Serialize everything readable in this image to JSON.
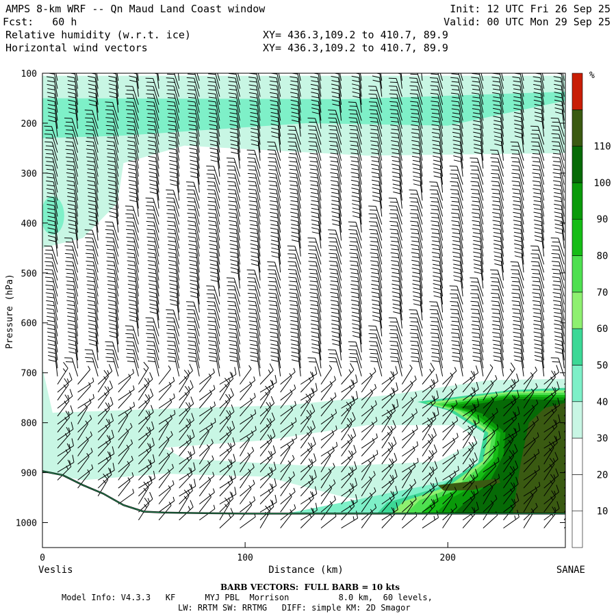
{
  "header": {
    "title": "AMPS 8-km WRF -- Qn Maud Land Coast window",
    "fcst": "Fcst:   60 h",
    "field1": "Relative humidity (w.r.t. ice)",
    "field2": "Horizontal wind vectors",
    "xy1": "XY= 436.3,109.2 to 410.7, 89.9",
    "xy2": "XY= 436.3,109.2 to 410.7, 89.9",
    "init": "Init: 12 UTC Fri 26 Sep 25",
    "valid": "Valid: 00 UTC Mon 29 Sep 25"
  },
  "footer": {
    "barb": "BARB VECTORS:  FULL BARB = 10 kts",
    "model1": "Model Info: V4.3.3   KF      MYJ PBL  Morrison          8.0 km,  60 levels,",
    "model2": "LW: RRTM SW: RRTMG   DIFF: simple KM: 2D Smagor"
  },
  "colors": {
    "rh_bins": [
      "#ffffff",
      "#ffffff",
      "#ffffff",
      "#c8f6e4",
      "#7ef0c8",
      "#3cd896",
      "#8ef070",
      "#4ee050",
      "#16bc16",
      "#0a9a0a",
      "#066a06",
      "#3a5a12",
      "#c81e06"
    ]
  },
  "chart_data": {
    "type": "cross-section",
    "title": "Relative humidity (w.r.t. ice) and horizontal wind vectors",
    "xlabel": "Distance (km)",
    "ylabel": "Pressure (hPa)",
    "xlim": [
      0,
      258
    ],
    "ylim": [
      1050,
      100
    ],
    "x_ticks": [
      0,
      100,
      200
    ],
    "y_ticks": [
      100,
      200,
      300,
      400,
      500,
      600,
      700,
      800,
      900,
      1000
    ],
    "x_end_labels": {
      "left": "Veslis",
      "right": "SANAE"
    },
    "colorbar": {
      "unit": "%",
      "levels": [
        10,
        20,
        30,
        40,
        50,
        60,
        70,
        80,
        90,
        100,
        110
      ]
    },
    "terrain": [
      [
        0,
        897
      ],
      [
        10,
        905
      ],
      [
        20,
        925
      ],
      [
        30,
        942
      ],
      [
        40,
        965
      ],
      [
        50,
        978
      ],
      [
        60,
        980
      ],
      [
        80,
        981
      ],
      [
        100,
        982
      ],
      [
        150,
        982
      ],
      [
        200,
        982
      ],
      [
        258,
        982
      ]
    ],
    "rh_regions": [
      {
        "name": "upper-moist-layer",
        "rh": 35,
        "top": 105,
        "bottom": 260
      },
      {
        "name": "upper-moist-core",
        "rh": 45,
        "top": 140,
        "bottom": 230
      },
      {
        "name": "left-moist-pocket",
        "rh": 45,
        "x": 5,
        "p": 385
      },
      {
        "name": "low-level-moist-layer",
        "rh": 35,
        "top": 780,
        "bottom": 880
      },
      {
        "name": "coastal-saturated-layer",
        "rh": 95,
        "x_from": 190,
        "top": 730,
        "bottom": 982
      },
      {
        "name": "supersaturated-pocket",
        "rh": 115,
        "x": 210,
        "p": 925
      }
    ],
    "wind_columns_km": [
      0,
      10,
      20,
      30,
      40,
      50,
      60,
      70,
      80,
      90,
      100,
      110,
      120,
      130,
      140,
      150,
      160,
      170,
      180,
      190,
      200,
      210,
      220,
      230,
      240,
      250
    ],
    "barb_units_kts": 10
  }
}
